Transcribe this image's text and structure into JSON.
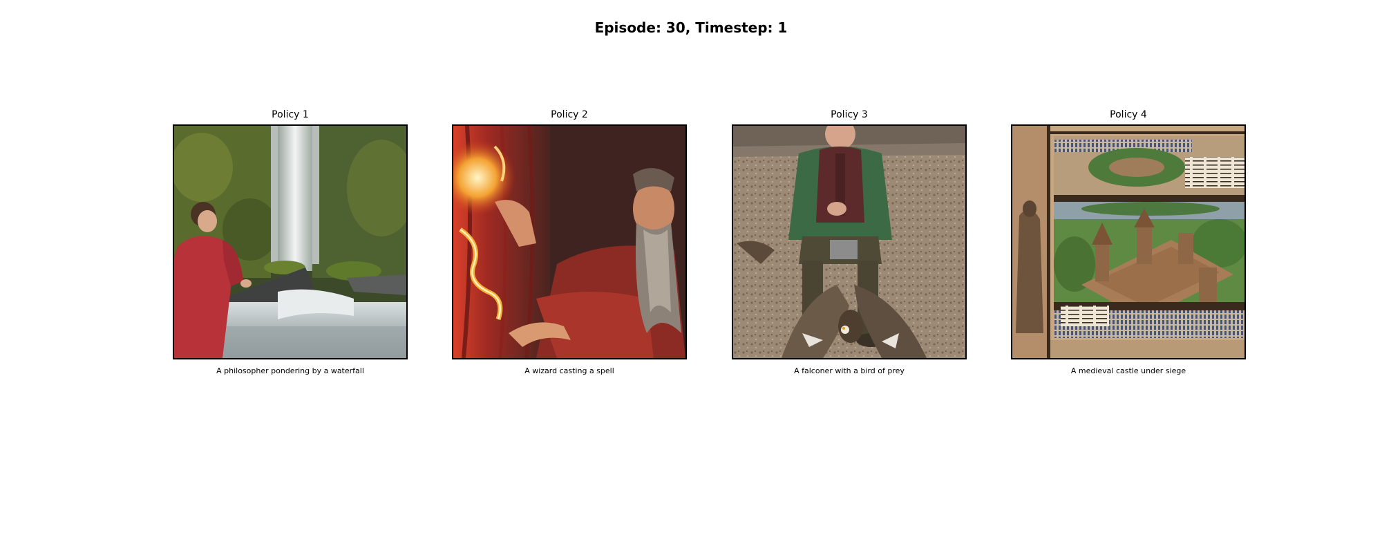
{
  "figure": {
    "title": "Episode: 30, Timestep: 1"
  },
  "panels": [
    {
      "title": "Policy 1",
      "caption": "A philosopher pondering by a waterfall"
    },
    {
      "title": "Policy 2",
      "caption": "A wizard casting a spell"
    },
    {
      "title": "Policy 3",
      "caption": "A falconer with a bird of prey"
    },
    {
      "title": "Policy 4",
      "caption": "A medieval castle under siege"
    }
  ]
}
